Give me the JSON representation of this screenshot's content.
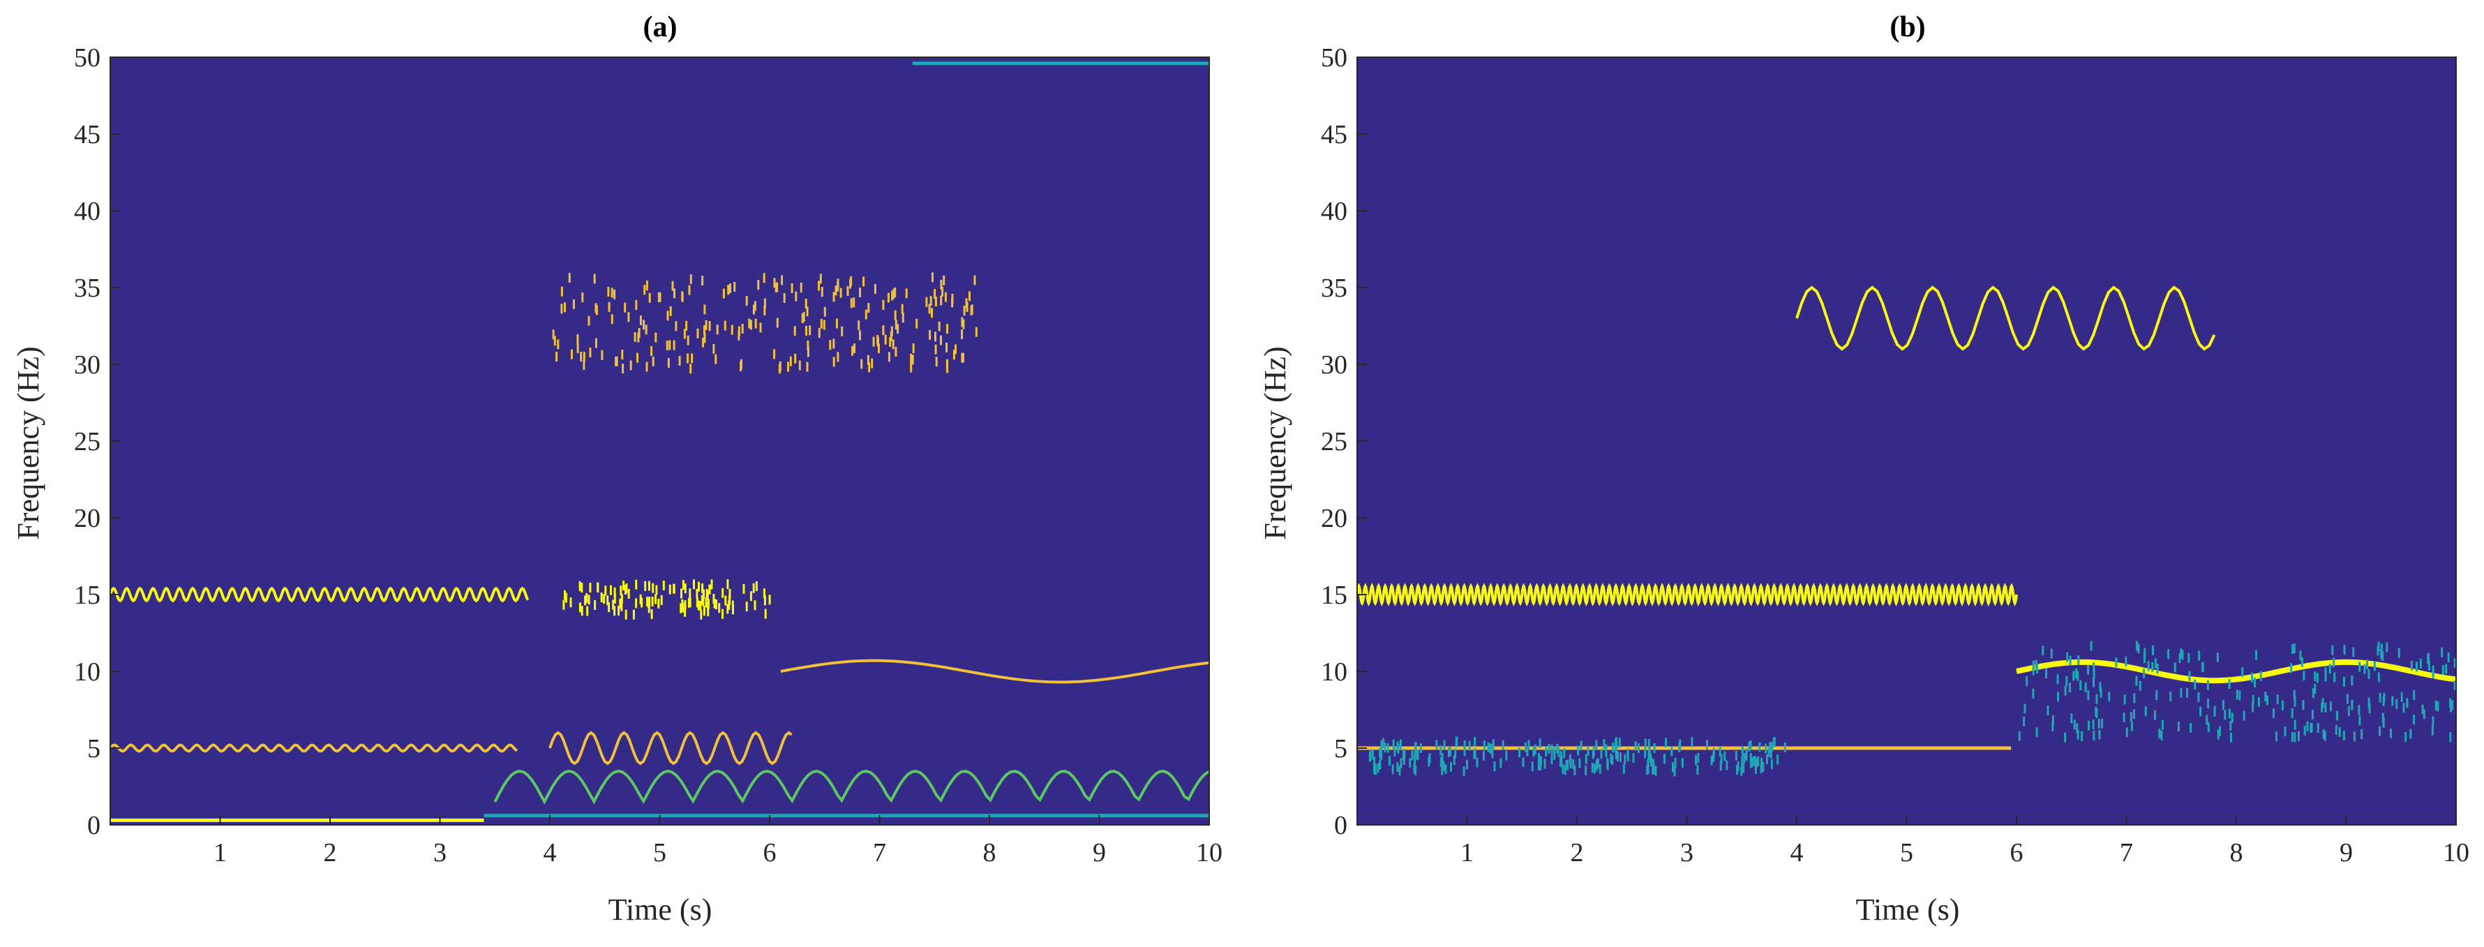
{
  "chart_data": [
    {
      "type": "heatmap",
      "panel": "a",
      "title": "(a)",
      "xlabel": "Time (s)",
      "ylabel": "Frequency (Hz)",
      "xlim": [
        0,
        10
      ],
      "ylim": [
        0,
        50
      ],
      "xticks": [
        1,
        2,
        3,
        4,
        5,
        6,
        7,
        8,
        9,
        10
      ],
      "yticks": [
        0,
        5,
        10,
        15,
        20,
        25,
        30,
        35,
        40,
        45,
        50
      ],
      "background_color": "#352a87",
      "colors": {
        "yellow": "#f9fb0e",
        "orange": "#f2c13a",
        "green": "#5cc863",
        "teal": "#21a6b6",
        "blue": "#1481d6"
      },
      "components": [
        {
          "name": "ridge-15hz",
          "color": "yellow",
          "style": "oscillating",
          "t_start": 0.0,
          "t_end": 3.8,
          "center": 15.0,
          "amplitude": 0.4,
          "period": 0.12
        },
        {
          "name": "ridge-5hz",
          "color": "orange",
          "style": "oscillating",
          "t_start": 0.0,
          "t_end": 3.7,
          "center": 5.0,
          "amplitude": 0.2,
          "period": 0.15
        },
        {
          "name": "ridge-0hz",
          "color": "yellow",
          "style": "line",
          "t_start": 0.0,
          "t_end": 3.4,
          "center": 0.3
        },
        {
          "name": "mixed-15hz",
          "color": "yellow",
          "style": "scatter",
          "t_start": 4.1,
          "t_end": 6.0,
          "center": 15.0,
          "spread": 1.0
        },
        {
          "name": "mixed-33hz",
          "color": "orange",
          "style": "scatter",
          "t_start": 4.0,
          "t_end": 7.9,
          "center": 33.0,
          "spread": 3.0
        },
        {
          "name": "mixed-5hz",
          "color": "orange",
          "style": "oscillating",
          "t_start": 4.0,
          "t_end": 6.2,
          "center": 5.0,
          "amplitude": 1.0,
          "period": 0.3
        },
        {
          "name": "ridge-10hz-wave",
          "color": "orange",
          "style": "wave",
          "t_start": 6.1,
          "t_end": 10.0,
          "center": 10.0,
          "amplitude": 0.7,
          "period": 3.4
        },
        {
          "name": "low-arcs",
          "color": "green",
          "style": "arcs",
          "t_start": 3.5,
          "t_end": 10.0,
          "center": 2.5,
          "amplitude": 2.0,
          "period": 0.45
        },
        {
          "name": "floor-0hz",
          "color": "teal",
          "style": "line",
          "t_start": 3.4,
          "t_end": 10.0,
          "center": 0.6
        },
        {
          "name": "top-50hz",
          "color": "teal",
          "style": "line",
          "t_start": 7.3,
          "t_end": 10.0,
          "center": 49.6
        }
      ]
    },
    {
      "type": "heatmap",
      "panel": "b",
      "title": "(b)",
      "xlabel": "Time (s)",
      "ylabel": "Frequency (Hz)",
      "xlim": [
        0,
        10
      ],
      "ylim": [
        0,
        50
      ],
      "xticks": [
        1,
        2,
        3,
        4,
        5,
        6,
        7,
        8,
        9,
        10
      ],
      "yticks": [
        0,
        5,
        10,
        15,
        20,
        25,
        30,
        35,
        40,
        45,
        50
      ],
      "background_color": "#352a87",
      "colors": {
        "yellow": "#f9fb0e",
        "orange": "#f2c13a",
        "green": "#5cc863",
        "teal": "#21a6b6",
        "blue": "#1481d6"
      },
      "components": [
        {
          "name": "ridge-15hz",
          "color": "yellow",
          "style": "oscillating",
          "t_start": 0.0,
          "t_end": 6.0,
          "center": 15.0,
          "amplitude": 0.55,
          "period": 0.06
        },
        {
          "name": "ridge-5hz",
          "color": "orange",
          "style": "line",
          "t_start": 0.0,
          "t_end": 5.95,
          "center": 5.0
        },
        {
          "name": "noise-5hz",
          "color": "teal",
          "style": "scatter",
          "t_start": 0.1,
          "t_end": 3.9,
          "center": 4.8,
          "spread": 1.0
        },
        {
          "name": "ridge-33hz-sine",
          "color": "yellow",
          "style": "wave",
          "t_start": 4.0,
          "t_end": 7.8,
          "center": 33.0,
          "amplitude": 2.0,
          "period": 0.55
        },
        {
          "name": "ridge-10hz-wave",
          "color": "yellow",
          "style": "wave",
          "t_start": 6.0,
          "t_end": 10.0,
          "center": 10.0,
          "amplitude": 0.6,
          "period": 2.4
        },
        {
          "name": "noise-10hz",
          "color": "teal",
          "style": "scatter",
          "t_start": 6.0,
          "t_end": 10.0,
          "center": 9.0,
          "spread": 3.0
        }
      ]
    }
  ]
}
